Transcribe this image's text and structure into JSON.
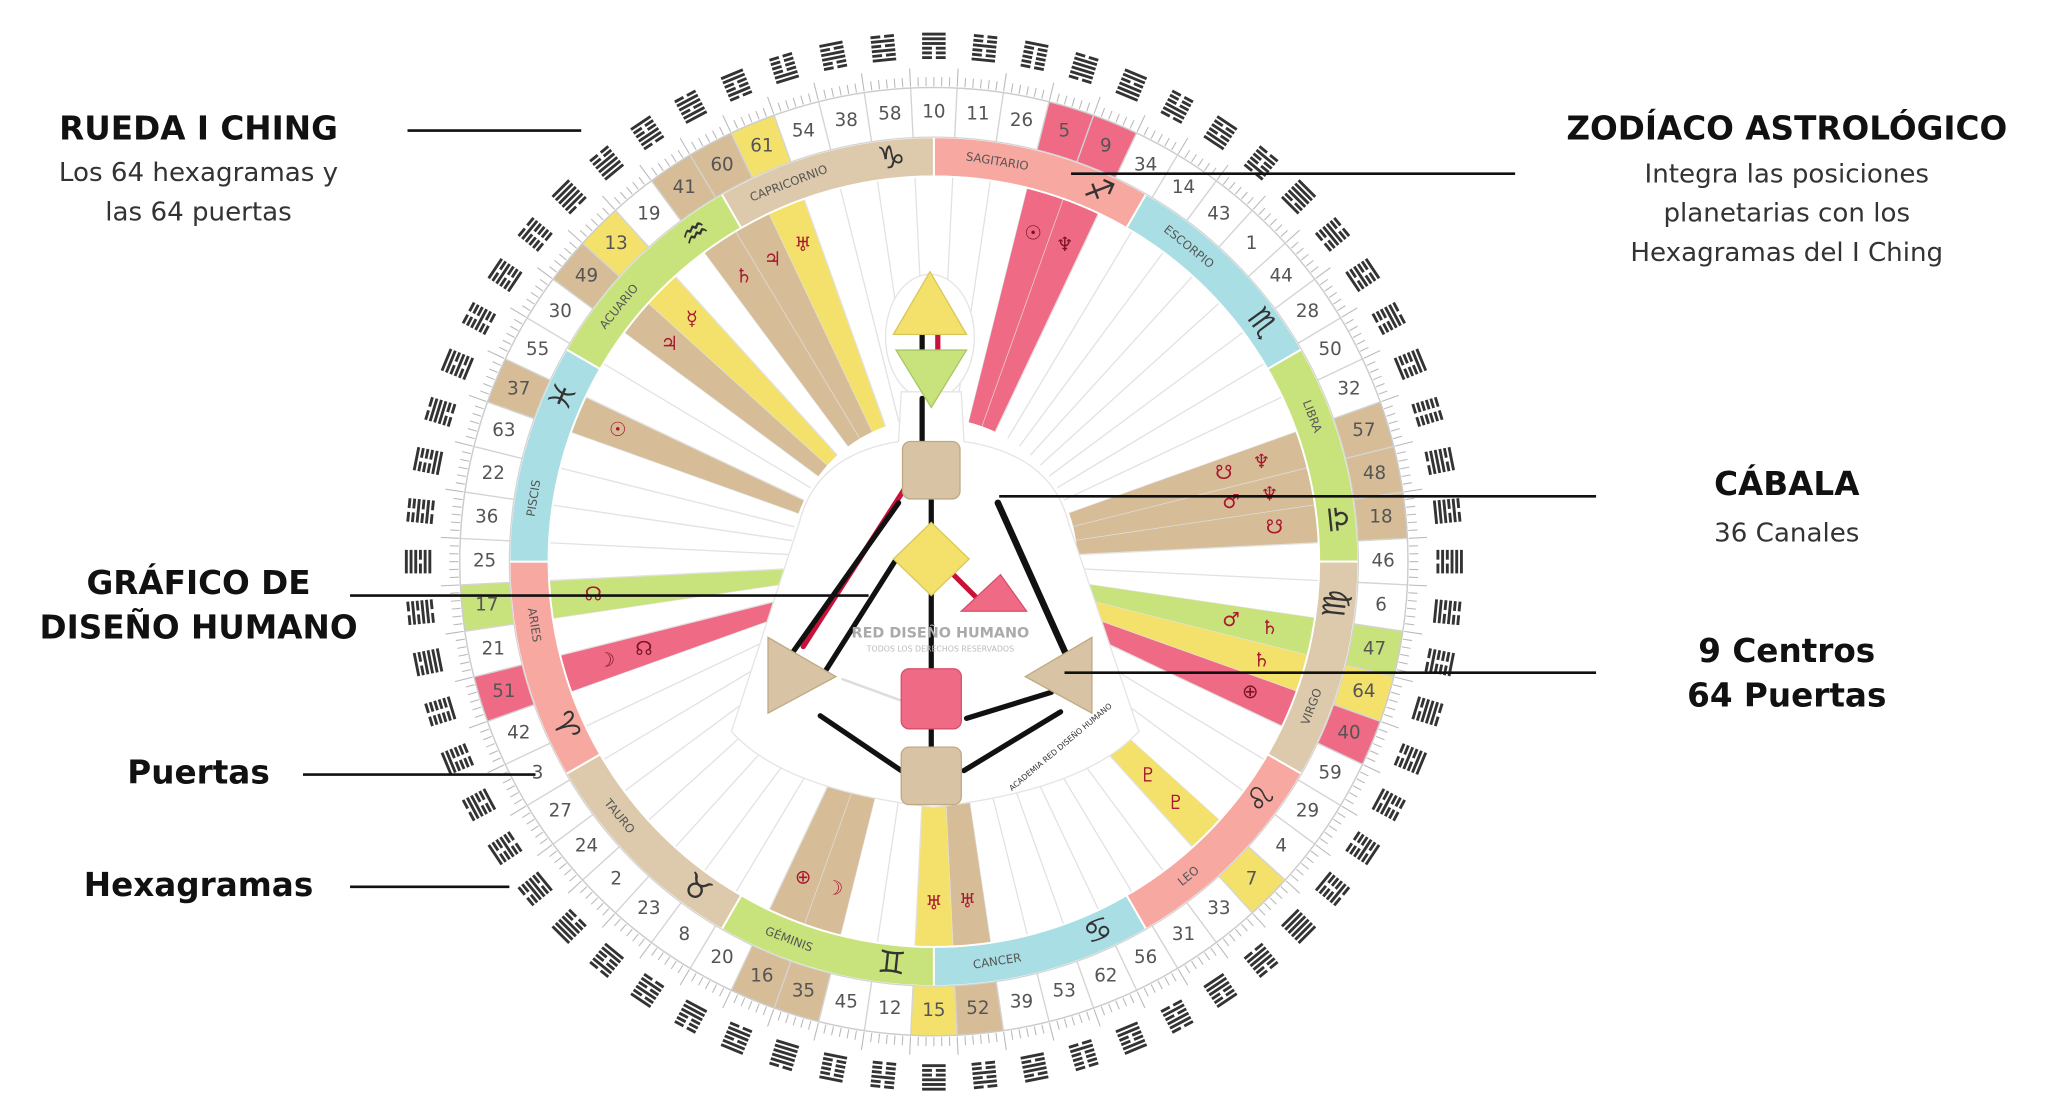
{
  "labels": [
    {
      "title": [
        "RUEDA I CHING"
      ],
      "text": [
        "Los 64 hexagramas y",
        "las 64 puertas"
      ]
    },
    {
      "title": [
        "ZODÍACO ASTROLÓGICO"
      ],
      "text": [
        "Integra las posiciones",
        "planetarias con los",
        "Hexagramas del I Ching"
      ]
    },
    {
      "title": [
        "CÁBALA"
      ],
      "text": [
        "36 Canales"
      ]
    },
    {
      "title": [
        "GRÁFICO DE",
        "DISEÑO HUMANO"
      ]
    },
    {
      "title": [
        "9 Centros",
        "64 Puertas"
      ]
    },
    {
      "title": [
        "Puertas"
      ]
    },
    {
      "title": [
        "Hexagramas"
      ]
    }
  ],
  "watermark": [
    "RED DISEÑO HUMANO",
    "TODOS LOS DERECHOS RESERVADOS",
    "ACADEMIA RED DISEÑO HUMANO"
  ],
  "signs": [
    {
      "name": "SAGITARIO",
      "glyph": "♐",
      "color": "#f7a8a0"
    },
    {
      "name": "ESCORPIO",
      "glyph": "♏",
      "color": "#a9dfe4"
    },
    {
      "name": "LIBRA",
      "glyph": "♎",
      "color": "#c8e27c"
    },
    {
      "name": "VIRGO",
      "glyph": "♍",
      "color": "#ddc9ab"
    },
    {
      "name": "LEO",
      "glyph": "♌",
      "color": "#f7a8a0"
    },
    {
      "name": "CANCER",
      "glyph": "♋",
      "color": "#a9dfe4"
    },
    {
      "name": "GÉMINIS",
      "glyph": "♊",
      "color": "#c8e27c"
    },
    {
      "name": "TAURO",
      "glyph": "♉",
      "color": "#ddc9ab"
    },
    {
      "name": "ARIES",
      "glyph": "♈",
      "color": "#f7a8a0"
    },
    {
      "name": "PISCIS",
      "glyph": "♓",
      "color": "#a9dfe4"
    },
    {
      "name": "ACUARIO",
      "glyph": "♒",
      "color": "#c8e27c"
    },
    {
      "name": "CAPRICORNIO",
      "glyph": "♑",
      "color": "#ddc9ab"
    }
  ],
  "gates": [
    {
      "number": 10
    },
    {
      "number": 11
    },
    {
      "number": 26
    },
    {
      "number": 5,
      "fill": "#ef6b85",
      "planets": [
        "☉"
      ]
    },
    {
      "number": 9,
      "fill": "#ef6b85",
      "planets": [
        "♆"
      ]
    },
    {
      "number": 34
    },
    {
      "number": 14
    },
    {
      "number": 43
    },
    {
      "number": 1
    },
    {
      "number": 44
    },
    {
      "number": 28
    },
    {
      "number": 50
    },
    {
      "number": 32
    },
    {
      "number": 57,
      "fill": "#d6bd98",
      "planets": [
        "♆",
        "☋"
      ]
    },
    {
      "number": 48,
      "fill": "#d6bd98",
      "planets": [
        "♆",
        "♂"
      ]
    },
    {
      "number": 18,
      "fill": "#d6bd98",
      "planets": [
        "☋"
      ]
    },
    {
      "number": 46
    },
    {
      "number": 6
    },
    {
      "number": 47,
      "fill": "#c8e27c",
      "planets": [
        "♄",
        "♂"
      ]
    },
    {
      "number": 64,
      "fill": "#f4e16c",
      "planets": [
        "♄"
      ]
    },
    {
      "number": 40,
      "fill": "#ef6b85",
      "planets": [
        "⊕"
      ]
    },
    {
      "number": 59
    },
    {
      "number": 29
    },
    {
      "number": 4
    },
    {
      "number": 7,
      "fill": "#f4e16c",
      "planets": [
        "♇",
        "♇"
      ]
    },
    {
      "number": 33
    },
    {
      "number": 31
    },
    {
      "number": 56
    },
    {
      "number": 62
    },
    {
      "number": 53
    },
    {
      "number": 39
    },
    {
      "number": 52,
      "fill": "#d6bd98",
      "planets": [
        "♅"
      ]
    },
    {
      "number": 15,
      "fill": "#f4e16c",
      "planets": [
        "♅"
      ]
    },
    {
      "number": 12
    },
    {
      "number": 45
    },
    {
      "number": 35,
      "fill": "#d6bd98",
      "planets": [
        "☽"
      ]
    },
    {
      "number": 16,
      "fill": "#d6bd98",
      "planets": [
        "⊕"
      ]
    },
    {
      "number": 20
    },
    {
      "number": 8
    },
    {
      "number": 23
    },
    {
      "number": 2
    },
    {
      "number": 24
    },
    {
      "number": 27
    },
    {
      "number": 3
    },
    {
      "number": 42
    },
    {
      "number": 51,
      "fill": "#ef6b85",
      "planets": [
        "☽",
        "☊"
      ]
    },
    {
      "number": 21
    },
    {
      "number": 17,
      "fill": "#c8e27c",
      "planets": [
        "☊"
      ]
    },
    {
      "number": 25
    },
    {
      "number": 36
    },
    {
      "number": 22
    },
    {
      "number": 63
    },
    {
      "number": 37,
      "fill": "#d6bd98",
      "planets": [
        "☉"
      ]
    },
    {
      "number": 55
    },
    {
      "number": 30
    },
    {
      "number": 49,
      "fill": "#d6bd98",
      "planets": [
        "♃"
      ]
    },
    {
      "number": 13,
      "fill": "#f4e16c",
      "planets": [
        "☿"
      ]
    },
    {
      "number": 19
    },
    {
      "number": 41,
      "fill": "#d6bd98",
      "planets": [
        "♄"
      ]
    },
    {
      "number": 60,
      "fill": "#d6bd98",
      "planets": [
        "♃"
      ]
    },
    {
      "number": 61,
      "fill": "#f4e16c",
      "planets": [
        "♅"
      ]
    },
    {
      "number": 54
    },
    {
      "number": 38
    },
    {
      "number": 58
    }
  ]
}
